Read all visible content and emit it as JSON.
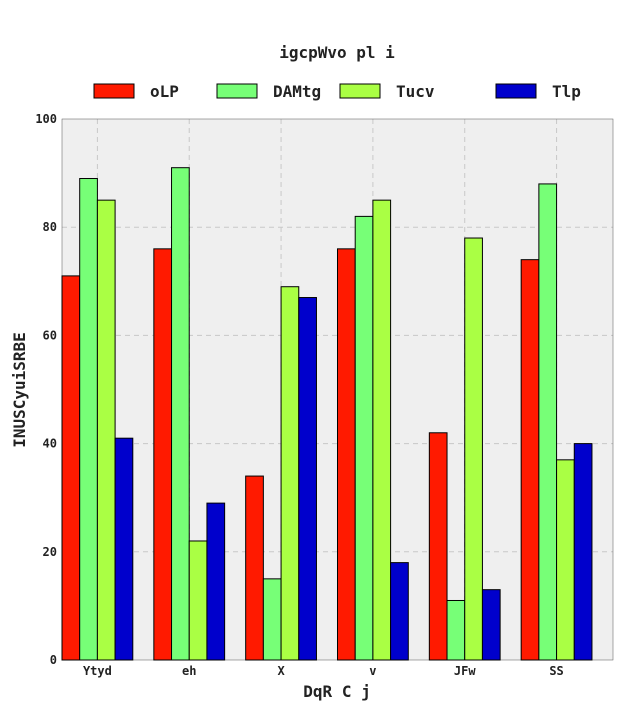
{
  "chart_data": {
    "type": "bar",
    "title": "igcpWvo pl  i",
    "xlabel": "DqR C j",
    "ylabel": "INUSCyuiSRBE",
    "categories": [
      "Ytyd",
      "eh",
      "X",
      "v",
      "JFw",
      "SS"
    ],
    "ylim": [
      0,
      100
    ],
    "yticks": [
      0,
      20,
      40,
      60,
      80,
      100
    ],
    "grid": true,
    "legend_position": "top",
    "series": [
      {
        "name": "oLP",
        "color": "#ff1a00",
        "values": [
          71,
          76,
          34,
          76,
          42,
          74
        ]
      },
      {
        "name": "DAMtg",
        "color": "#77ff77",
        "values": [
          89,
          91,
          15,
          82,
          11,
          88
        ]
      },
      {
        "name": "Tucv",
        "color": "#aaff44",
        "values": [
          85,
          22,
          69,
          85,
          78,
          37
        ]
      },
      {
        "name": "Tlp",
        "color": "#0000cc",
        "values": [
          41,
          29,
          67,
          18,
          13,
          40
        ]
      }
    ]
  }
}
